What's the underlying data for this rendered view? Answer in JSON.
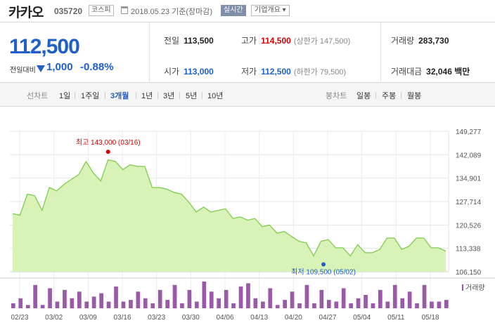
{
  "header": {
    "name": "카카오",
    "code": "035720",
    "market": "코스피",
    "date_text": "2018.05.23 기준(장마감)",
    "live_label": "실시간",
    "corp_label": "기업개요 ▾"
  },
  "quote": {
    "price": "112,500",
    "vs_label": "전일대비",
    "change": "1,000",
    "change_pct": "-0.88%",
    "prev_label": "전일",
    "prev": "113,500",
    "high_label": "고가",
    "high": "114,500",
    "upper_limit": "(상한가 147,500)",
    "volume_label": "거래량",
    "volume": "283,730",
    "open_label": "시가",
    "open": "113,000",
    "low_label": "저가",
    "low": "112,500",
    "lower_limit": "(하한가 79,500)",
    "amount_label": "거래대금",
    "amount": "32,046 백만"
  },
  "toolbar": {
    "line_label": "선차트",
    "periods": [
      "1일",
      "1주일",
      "3개월",
      "1년",
      "3년",
      "5년",
      "10년"
    ],
    "active_period": "3개월",
    "candle_label": "봉차트",
    "candles": [
      "일봉",
      "주봉",
      "월봉"
    ]
  },
  "colors": {
    "up": "#d40000",
    "down": "#1e5fc8",
    "area_fill": "#d9f2b8",
    "area_line": "#7ccd4c",
    "volume_bar": "#9b5aa8"
  },
  "chart_data": {
    "type": "area",
    "y_ticks": [
      "149,277",
      "142,089",
      "134,901",
      "127,714",
      "120,526",
      "113,338",
      "106,150"
    ],
    "ylim": [
      106150,
      149277
    ],
    "x_ticks": [
      "02/23",
      "03/02",
      "03/09",
      "03/16",
      "03/23",
      "03/30",
      "04/06",
      "04/13",
      "04/20",
      "04/27",
      "05/04",
      "05/11",
      "05/18"
    ],
    "high_annotation": "최고 143,000 (03/16)",
    "low_annotation": "최저 109,500 (05/02)",
    "high_point": {
      "date": "03/16",
      "value": 143000
    },
    "low_point": {
      "date": "05/02",
      "value": 109500
    },
    "volume_label": "거래량",
    "values": [
      124000,
      123500,
      130000,
      129500,
      125000,
      132000,
      131000,
      133000,
      134500,
      136000,
      140000,
      136500,
      134000,
      140500,
      140000,
      137500,
      139000,
      138500,
      138500,
      132000,
      132000,
      131500,
      130500,
      130000,
      127500,
      124500,
      126000,
      124500,
      125000,
      125500,
      122500,
      123000,
      122000,
      122500,
      120000,
      120500,
      118000,
      118500,
      117000,
      115500,
      115000,
      111000,
      115500,
      116000,
      113500,
      113500,
      111000,
      114500,
      112000,
      112000,
      113000,
      116500,
      116500,
      113000,
      114000,
      116500,
      116500,
      113500,
      113500,
      112500
    ],
    "volumes": [
      3,
      6,
      2,
      14,
      2,
      12,
      4,
      11,
      6,
      10,
      4,
      7,
      9,
      4,
      13,
      4,
      5,
      10,
      6,
      3,
      11,
      5,
      14,
      3,
      11,
      4,
      16,
      10,
      6,
      11,
      3,
      13,
      15,
      6,
      4,
      12,
      2,
      5,
      10,
      3,
      14,
      3,
      11,
      5,
      4,
      12,
      3,
      6,
      8,
      3,
      11,
      4,
      14,
      6,
      10,
      3,
      14,
      4,
      4,
      5
    ]
  }
}
